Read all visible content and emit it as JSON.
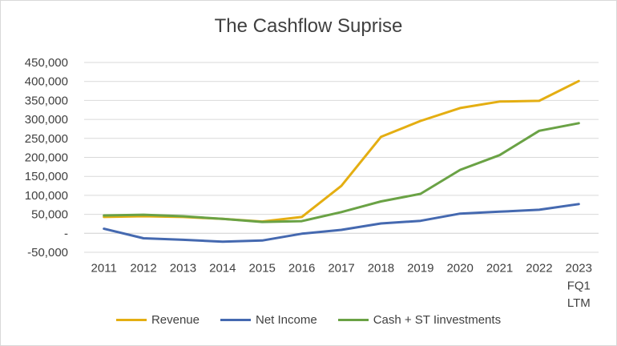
{
  "chart_data": {
    "type": "line",
    "title": "The Cashflow Suprise",
    "xlabel": "",
    "ylabel": "",
    "categories": [
      "2011",
      "2012",
      "2013",
      "2014",
      "2015",
      "2016",
      "2017",
      "2018",
      "2019",
      "2020",
      "2021",
      "2022",
      "2023 FQ1 LTM"
    ],
    "category_lines": [
      [
        "2011"
      ],
      [
        "2012"
      ],
      [
        "2013"
      ],
      [
        "2014"
      ],
      [
        "2015"
      ],
      [
        "2016"
      ],
      [
        "2017"
      ],
      [
        "2018"
      ],
      [
        "2019"
      ],
      [
        "2020"
      ],
      [
        "2021"
      ],
      [
        "2022"
      ],
      [
        "2023",
        "FQ1",
        "LTM"
      ]
    ],
    "ylim": [
      -50000,
      450000
    ],
    "yticks": [
      -50000,
      0,
      50000,
      100000,
      150000,
      200000,
      250000,
      300000,
      350000,
      400000,
      450000
    ],
    "ytick_labels": [
      "-50,000",
      "-",
      "50,000",
      "100,000",
      "150,000",
      "200,000",
      "250,000",
      "300,000",
      "350,000",
      "400,000",
      "450,000"
    ],
    "grid": true,
    "legend_position": "bottom",
    "series": [
      {
        "name": "Revenue",
        "color": "#E4AE12",
        "values": [
          43000,
          45000,
          43000,
          38000,
          31000,
          43000,
          125000,
          254000,
          296000,
          330000,
          347000,
          349000,
          401000
        ]
      },
      {
        "name": "Net Income",
        "color": "#4569B0",
        "values": [
          12000,
          -13000,
          -17000,
          -22000,
          -19000,
          -1000,
          9000,
          26000,
          33000,
          52000,
          57000,
          62000,
          77000
        ]
      },
      {
        "name": "Cash + ST Iinvestments",
        "color": "#6AA245",
        "values": [
          47000,
          49000,
          45000,
          38000,
          30000,
          32000,
          56000,
          84000,
          104000,
          167000,
          206000,
          270000,
          290000
        ]
      }
    ]
  }
}
